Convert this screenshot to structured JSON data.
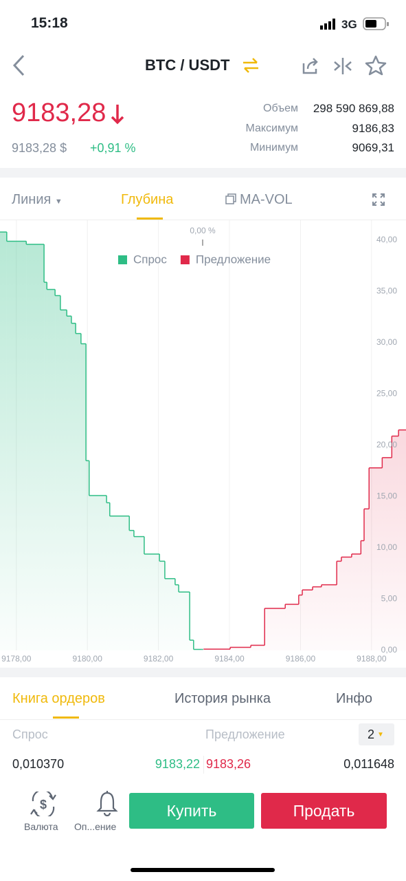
{
  "status": {
    "time": "15:18",
    "network": "3G"
  },
  "header": {
    "pair": "BTC / USDT"
  },
  "ticker": {
    "price": "9183,28",
    "price_usd": "9183,28 $",
    "change": "+0,91 %",
    "stats": [
      {
        "label": "Объем",
        "value": "298 590 869,88"
      },
      {
        "label": "Максимум",
        "value": "9186,83"
      },
      {
        "label": "Минимум",
        "value": "9069,31"
      }
    ]
  },
  "chart_tabs": [
    "Линия",
    "Глубина",
    "MA-VOL"
  ],
  "chart_data": {
    "type": "depth",
    "annotation": "0,00 %",
    "grid": true,
    "legend": "top",
    "xlim": [
      9177.54,
      9188.97
    ],
    "ylim": [
      0,
      40
    ],
    "xticks": [
      {
        "value": 9178,
        "label": "9178,00"
      },
      {
        "value": 9180,
        "label": "9180,00"
      },
      {
        "value": 9182,
        "label": "9182,00"
      },
      {
        "value": 9184,
        "label": "9184,00"
      },
      {
        "value": 9186,
        "label": "9186,00"
      },
      {
        "value": 9188,
        "label": "9188,00"
      }
    ],
    "yticks": [
      {
        "value": 0,
        "label": "0,00"
      },
      {
        "value": 5,
        "label": "5,00"
      },
      {
        "value": 10,
        "label": "10,00"
      },
      {
        "value": 15,
        "label": "15,00"
      },
      {
        "value": 20,
        "label": "20,00"
      },
      {
        "value": 25,
        "label": "25,00"
      },
      {
        "value": 30,
        "label": "30,00"
      },
      {
        "value": 35,
        "label": "35,00"
      },
      {
        "value": 40,
        "label": "40,00"
      }
    ],
    "series": [
      {
        "name": "Спрос",
        "color": "#2ebd85",
        "x": [
          9177.54,
          9177.73,
          9178.28,
          9178.78,
          9178.86,
          9179.09,
          9179.24,
          9179.42,
          9179.55,
          9179.67,
          9179.82,
          9179.96,
          9180.05,
          9180.54,
          9180.63,
          9181.18,
          9181.31,
          9181.6,
          9182.03,
          9182.18,
          9182.47,
          9182.57,
          9182.88,
          9182.99,
          9183.22
        ],
        "values": [
          40.8,
          39.9,
          39.6,
          35.9,
          35.2,
          34.6,
          33.2,
          32.6,
          31.9,
          30.9,
          29.9,
          18.5,
          15.1,
          14.4,
          13.1,
          11.7,
          11.1,
          9.4,
          8.7,
          7.0,
          6.4,
          5.7,
          1.0,
          0.1,
          0.1
        ]
      },
      {
        "name": "Предложение",
        "color": "#e0294a",
        "x": [
          9183.27,
          9184.02,
          9184.6,
          9184.99,
          9185.57,
          9185.95,
          9186.05,
          9186.34,
          9186.59,
          9187.02,
          9187.15,
          9187.44,
          9187.7,
          9187.79,
          9187.93,
          9188.3,
          9188.57,
          9188.76
        ],
        "values": [
          0.13,
          0.3,
          0.5,
          4.1,
          4.5,
          5.4,
          5.9,
          6.2,
          6.4,
          8.7,
          9.1,
          9.4,
          10.7,
          13.8,
          17.8,
          18.8,
          20.9,
          21.5
        ]
      }
    ]
  },
  "book_tabs": [
    "Книга ордеров",
    "История рынка",
    "Инфо"
  ],
  "book": {
    "bid_label": "Спрос",
    "ask_label": "Предложение",
    "precision": "2",
    "row": {
      "bid_amount": "0,010370",
      "bid_price": "9183,22",
      "ask_price": "9183,26",
      "ask_amount": "0,011648"
    }
  },
  "footer": {
    "currency": "Валюта",
    "notify": "Оп...ение",
    "buy": "Купить",
    "sell": "Продать"
  }
}
